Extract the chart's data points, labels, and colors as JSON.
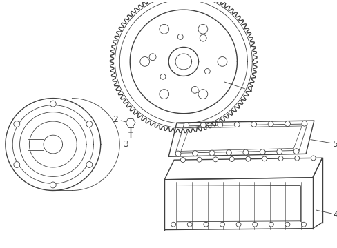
{
  "background_color": "#ffffff",
  "line_color": "#404040",
  "label_color": "#000000",
  "fig_width": 4.89,
  "fig_height": 3.6,
  "dpi": 100
}
